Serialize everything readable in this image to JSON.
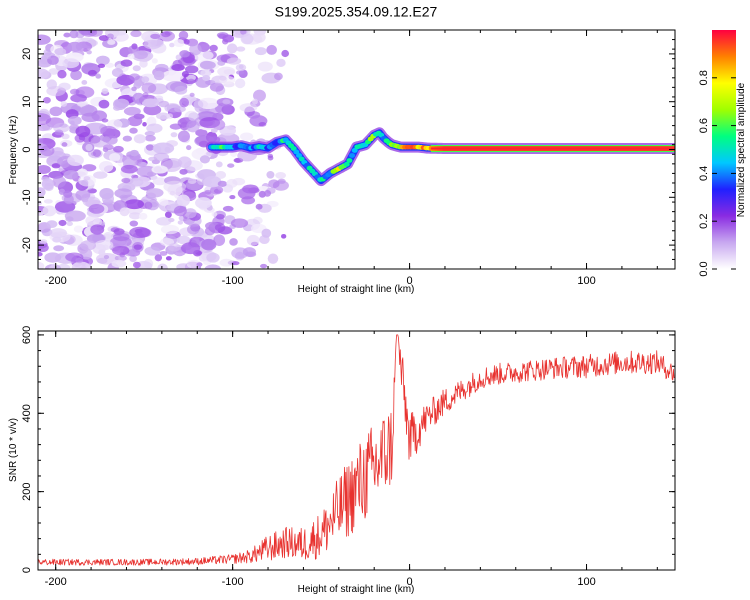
{
  "title": "S199.2025.354.09.12.E27",
  "colors": {
    "snr_line": "#e8322f",
    "axes": "#000000",
    "background": "#ffffff",
    "colorbar": [
      "#ffffff",
      "#c8a8f0",
      "#8a2be2",
      "#2020ff",
      "#00c8ff",
      "#00ff80",
      "#a0ff00",
      "#ffff00",
      "#ff8000",
      "#ff0040"
    ]
  },
  "chart_data": [
    {
      "type": "heatmap",
      "name": "spectrogram",
      "xlabel": "Height of straight line (km)",
      "ylabel": "Frequency (Hz)",
      "xlim": [
        -210,
        150
      ],
      "ylim": [
        -25,
        25
      ],
      "x_ticks": [
        -200,
        -100,
        0,
        100
      ],
      "x_tick_labels": [
        "-200",
        "-100",
        "0",
        "100"
      ],
      "y_ticks": [
        -20,
        -10,
        0,
        10,
        20
      ],
      "y_tick_labels": [
        "-20",
        "-10",
        "0",
        "10",
        "20"
      ],
      "colorbar": {
        "label": "Normalized spectral amplitude",
        "range": [
          0,
          1
        ],
        "ticks": [
          0,
          0.2,
          0.4,
          0.6,
          0.8
        ],
        "tick_labels": [
          "0.0",
          "0.2",
          "0.4",
          "0.6",
          "0.8"
        ]
      },
      "ridge": {
        "x": [
          -112,
          -105,
          -100,
          -95,
          -90,
          -85,
          -80,
          -75,
          -70,
          -65,
          -60,
          -55,
          -50,
          -45,
          -40,
          -35,
          -30,
          -25,
          -20,
          -17,
          -15,
          -12,
          -10,
          -5,
          0,
          5,
          10,
          20,
          40,
          60,
          80,
          100,
          120,
          150
        ],
        "y": [
          0.5,
          0.5,
          0.5,
          0.8,
          0.3,
          0.6,
          0.3,
          1.5,
          2.0,
          0.0,
          -2.5,
          -4.5,
          -6.5,
          -5.0,
          -4.0,
          -3.0,
          0.5,
          1.0,
          3.0,
          3.5,
          2.5,
          1.5,
          1.0,
          0.5,
          0.5,
          0.5,
          0.3,
          0.2,
          0.2,
          0.2,
          0.2,
          0.2,
          0.2,
          0.2
        ],
        "amplitude": [
          0.35,
          0.55,
          0.45,
          0.35,
          0.4,
          0.4,
          0.35,
          0.45,
          0.5,
          0.45,
          0.4,
          0.5,
          0.45,
          0.45,
          0.7,
          0.5,
          0.45,
          0.5,
          0.6,
          0.55,
          0.5,
          0.5,
          0.6,
          0.7,
          0.85,
          0.8,
          0.85,
          0.95,
          0.95,
          0.95,
          0.95,
          0.95,
          0.95,
          0.95
        ]
      },
      "noise_region": {
        "x_range": [
          -210,
          -95
        ],
        "amplitude_range": [
          0.02,
          0.2
        ]
      }
    },
    {
      "type": "line",
      "name": "snr",
      "xlabel": "Height of straight line (km)",
      "ylabel": "SNR (10 * v/v)",
      "xlim": [
        -210,
        150
      ],
      "ylim": [
        0,
        610
      ],
      "x_ticks": [
        -200,
        -100,
        0,
        100
      ],
      "x_tick_labels": [
        "-200",
        "-100",
        "0",
        "100"
      ],
      "y_ticks": [
        0,
        200,
        400,
        600
      ],
      "y_tick_labels": [
        "0",
        "200",
        "400",
        "600"
      ],
      "series": [
        {
          "name": "SNR",
          "x": [
            -210,
            -180,
            -150,
            -120,
            -100,
            -90,
            -80,
            -70,
            -60,
            -50,
            -40,
            -30,
            -20,
            -10,
            -7,
            0,
            10,
            20,
            30,
            40,
            50,
            60,
            80,
            100,
            120,
            140,
            150
          ],
          "y": [
            20,
            20,
            20,
            22,
            28,
            35,
            55,
            70,
            65,
            90,
            150,
            210,
            260,
            320,
            600,
            330,
            390,
            430,
            460,
            490,
            500,
            505,
            515,
            520,
            530,
            530,
            500
          ],
          "noise_amplitude": [
            8,
            8,
            8,
            9,
            12,
            18,
            35,
            40,
            45,
            60,
            90,
            110,
            120,
            110,
            60,
            70,
            40,
            35,
            30,
            28,
            28,
            28,
            28,
            30,
            30,
            30,
            25
          ]
        }
      ]
    }
  ]
}
